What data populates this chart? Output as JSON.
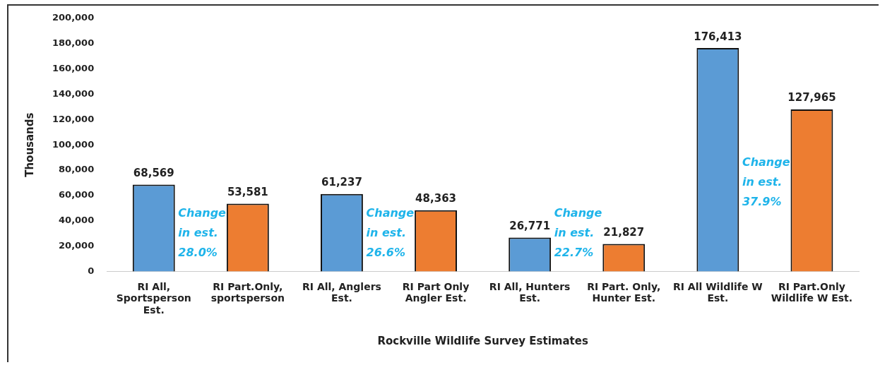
{
  "chart_data": {
    "type": "bar",
    "xlabel": "Rockville Wildlife Survey Estimates",
    "ylabel": "Thousands",
    "categories": [
      "RI All, Sportsperson Est.",
      "RI Part.Only, sportsperson",
      "RI All, Anglers Est.",
      "RI Part Only Angler Est.",
      "RI All, Hunters Est.",
      "RI Part. Only, Hunter Est.",
      "RI All Wildlife W Est.",
      "RI Part.Only Wildlife W Est."
    ],
    "series": [
      {
        "values": [
          68569,
          53581,
          61237,
          48363,
          26771,
          21827,
          176413,
          127965
        ],
        "value_labels": [
          "68,569",
          "53,581",
          "61,237",
          "48,363",
          "26,771",
          "21,827",
          "176,413",
          "127,965"
        ],
        "colors": [
          "#5b9bd5",
          "#ed7d31",
          "#5b9bd5",
          "#ed7d31",
          "#5b9bd5",
          "#ed7d31",
          "#5b9bd5",
          "#ed7d31"
        ]
      }
    ],
    "ylim": [
      0,
      200000
    ],
    "yticks": [
      0,
      {
        "value": 20000,
        "label": "20,000"
      },
      {
        "value": 40000,
        "label": "40,000"
      },
      {
        "value": 60000,
        "label": "60,000"
      },
      {
        "value": 80000,
        "label": "80,000"
      },
      {
        "value": 100000,
        "label": "100,000"
      },
      {
        "value": 120000,
        "label": "120,000"
      },
      {
        "value": 140000,
        "label": "140,000"
      },
      {
        "value": 160000,
        "label": "160,000"
      },
      {
        "value": 180000,
        "label": "180,000"
      },
      {
        "value": 200000,
        "label": "200,000"
      }
    ],
    "grid": false,
    "legend": false,
    "annotations": [
      "Change in est. 28.0%",
      "Change in est. 26.6%",
      "Change in est. 22.7%",
      "Change in est. 37.9%"
    ]
  }
}
